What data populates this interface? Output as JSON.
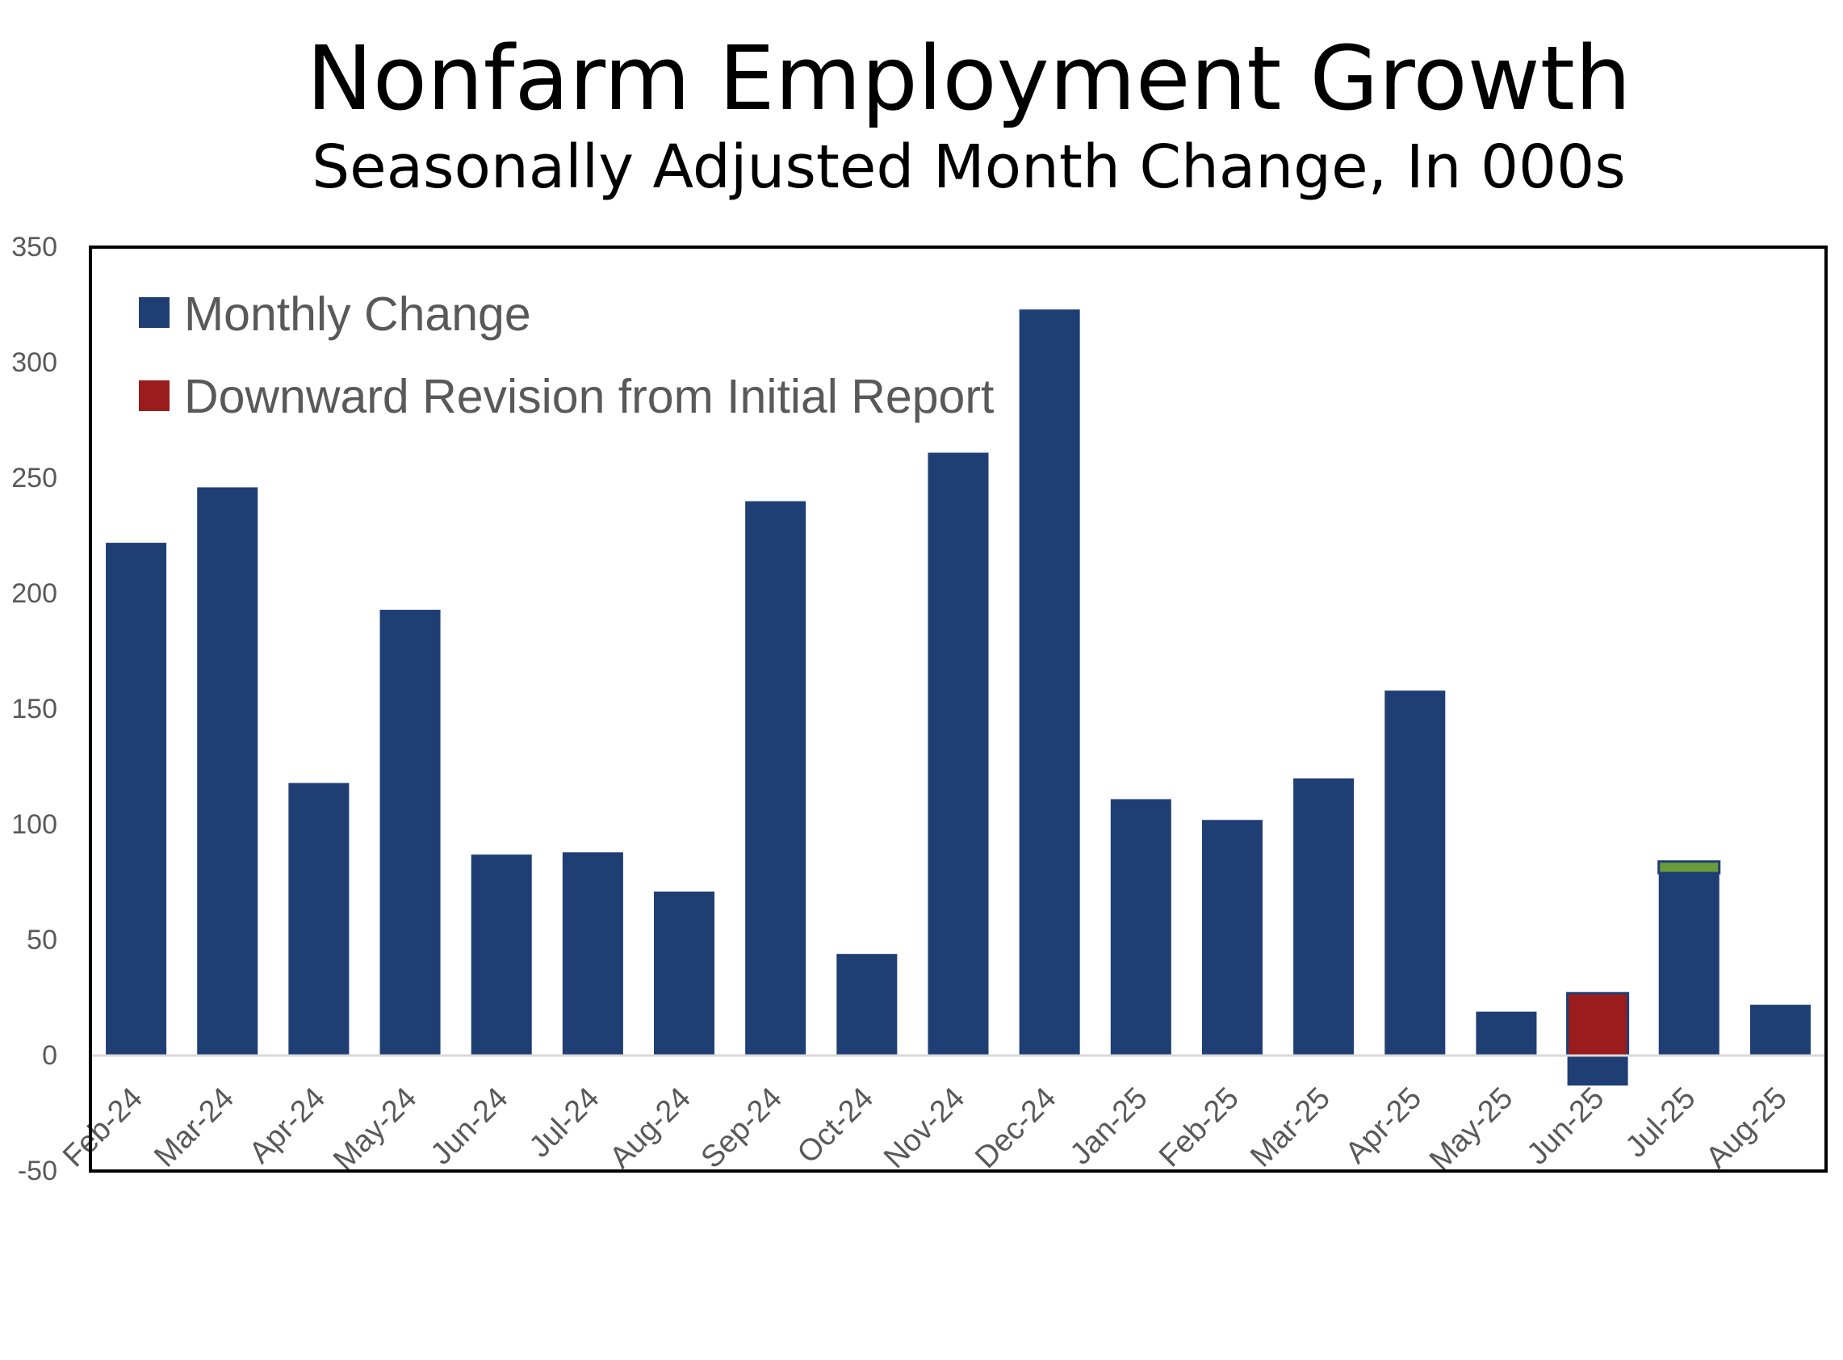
{
  "chart_data": {
    "type": "bar",
    "title": "Nonfarm Employment Growth",
    "subtitle": "Seasonally Adjusted Month Change, In 000s",
    "xlabel": "",
    "ylabel": "",
    "categories": [
      "Feb-24",
      "Mar-24",
      "Apr-24",
      "May-24",
      "Jun-24",
      "Jul-24",
      "Aug-24",
      "Sep-24",
      "Oct-24",
      "Nov-24",
      "Dec-24",
      "Jan-25",
      "Feb-25",
      "Mar-25",
      "Apr-25",
      "May-25",
      "Jun-25",
      "Jul-25",
      "Aug-25"
    ],
    "series": [
      {
        "name": "Monthly Change",
        "color": "#1f3f74",
        "values": [
          222,
          246,
          118,
          193,
          87,
          88,
          71,
          240,
          44,
          261,
          323,
          111,
          102,
          120,
          158,
          19,
          -13,
          79,
          22
        ]
      },
      {
        "name": "Downward Revision from Initial Report",
        "color": "#9b1c1c",
        "values": [
          null,
          null,
          null,
          null,
          null,
          null,
          null,
          null,
          null,
          null,
          null,
          null,
          null,
          null,
          null,
          null,
          27,
          null,
          null
        ]
      },
      {
        "color": "#6b9c3b",
        "values": [
          null,
          null,
          null,
          null,
          null,
          null,
          null,
          null,
          null,
          null,
          null,
          null,
          null,
          null,
          null,
          null,
          null,
          5,
          null
        ]
      }
    ],
    "ylim": [
      -50,
      350
    ],
    "yticks": [
      350,
      300,
      250,
      200,
      150,
      100,
      50,
      0,
      -50
    ],
    "grid": false
  }
}
